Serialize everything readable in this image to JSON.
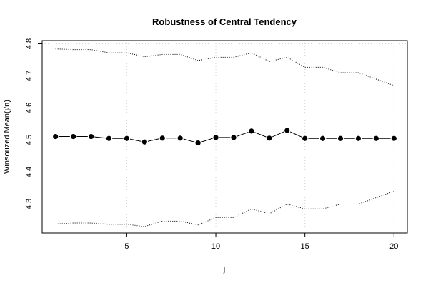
{
  "chart_data": {
    "type": "line",
    "title": "Robustness of Central Tendency",
    "xlabel": "j",
    "ylabel": "Winsorized Mean(j/n)",
    "xlim": [
      0.25,
      20.75
    ],
    "ylim": [
      4.21,
      4.81
    ],
    "x_ticks": [
      5,
      10,
      15,
      20
    ],
    "y_ticks": [
      4.3,
      4.4,
      4.5,
      4.6,
      4.7,
      4.8
    ],
    "x_tick_labels": [
      "5",
      "10",
      "15",
      "20"
    ],
    "y_tick_labels": [
      "4.3",
      "4.4",
      "4.5",
      "4.6",
      "4.7",
      "4.8"
    ],
    "grid": true,
    "x": [
      1,
      2,
      3,
      4,
      5,
      6,
      7,
      8,
      9,
      10,
      11,
      12,
      13,
      14,
      15,
      16,
      17,
      18,
      19,
      20
    ],
    "series": [
      {
        "role": "mean",
        "style": "line-points",
        "values": [
          4.511,
          4.511,
          4.511,
          4.505,
          4.505,
          4.494,
          4.506,
          4.506,
          4.491,
          4.508,
          4.508,
          4.528,
          4.506,
          4.53,
          4.505,
          4.505,
          4.505,
          4.505,
          4.505,
          4.505
        ]
      },
      {
        "role": "upper-bound",
        "style": "dotted",
        "values": [
          4.784,
          4.782,
          4.782,
          4.772,
          4.772,
          4.76,
          4.767,
          4.767,
          4.748,
          4.758,
          4.758,
          4.772,
          4.745,
          4.758,
          4.727,
          4.727,
          4.71,
          4.71,
          4.69,
          4.67
        ]
      },
      {
        "role": "lower-bound",
        "style": "dotted",
        "values": [
          4.238,
          4.241,
          4.241,
          4.237,
          4.237,
          4.23,
          4.247,
          4.247,
          4.235,
          4.258,
          4.258,
          4.285,
          4.27,
          4.3,
          4.285,
          4.285,
          4.3,
          4.3,
          4.32,
          4.34
        ]
      }
    ]
  }
}
